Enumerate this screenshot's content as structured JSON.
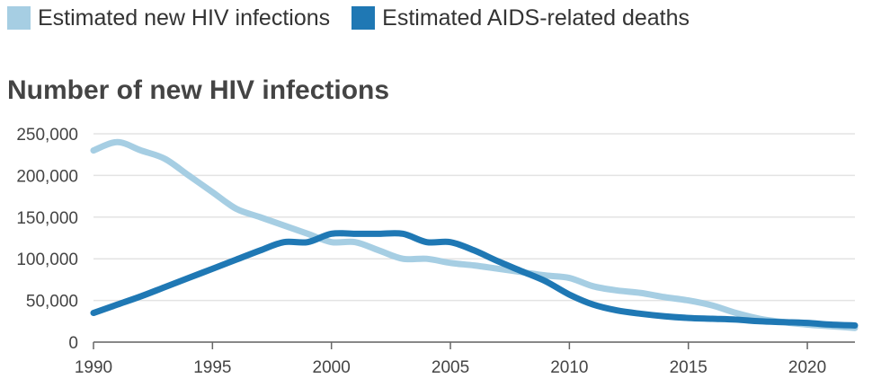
{
  "chart_data": {
    "type": "line",
    "title": "Number of new HIV infections",
    "xlabel": "",
    "ylabel": "",
    "xlim": [
      1990,
      2022
    ],
    "ylim": [
      0,
      250000
    ],
    "x_ticks": [
      1990,
      1995,
      2000,
      2005,
      2010,
      2015,
      2020
    ],
    "y_ticks": [
      0,
      50000,
      100000,
      150000,
      200000,
      250000
    ],
    "y_tick_labels": [
      "0",
      "50,000",
      "100,000",
      "150,000",
      "200,000",
      "250,000"
    ],
    "grid": "horizontal",
    "legend_position": "top-left",
    "x": [
      1990,
      1991,
      1992,
      1993,
      1994,
      1995,
      1996,
      1997,
      1998,
      1999,
      2000,
      2001,
      2002,
      2003,
      2004,
      2005,
      2006,
      2007,
      2008,
      2009,
      2010,
      2011,
      2012,
      2013,
      2014,
      2015,
      2016,
      2017,
      2018,
      2019,
      2020,
      2021,
      2022
    ],
    "series": [
      {
        "name": "Estimated new HIV infections",
        "color": "#a6cee3",
        "values": [
          230000,
          240000,
          230000,
          220000,
          200000,
          180000,
          160000,
          150000,
          140000,
          130000,
          120000,
          120000,
          110000,
          100000,
          100000,
          95000,
          92000,
          88000,
          84000,
          80000,
          77000,
          67000,
          62000,
          59000,
          54000,
          50000,
          44000,
          35000,
          28000,
          24000,
          21000,
          19000,
          17000
        ]
      },
      {
        "name": "Estimated AIDS-related deaths",
        "color": "#1f78b4",
        "values": [
          35000,
          45000,
          55000,
          66000,
          77000,
          88000,
          99000,
          110000,
          120000,
          120000,
          130000,
          130000,
          130000,
          130000,
          120000,
          120000,
          110000,
          97000,
          85000,
          73000,
          57000,
          45000,
          38000,
          34000,
          31000,
          29000,
          28000,
          27000,
          25000,
          24000,
          23000,
          21000,
          20000
        ]
      }
    ]
  }
}
